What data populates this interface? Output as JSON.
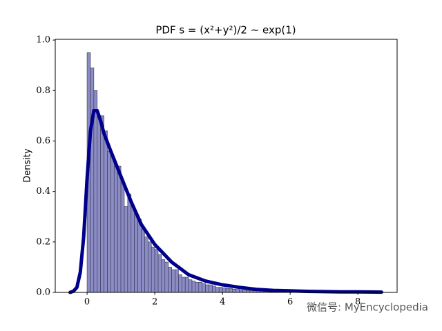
{
  "chart_data": {
    "type": "histogram",
    "title": "PDF s = (x²+y²)/2 ∼ exp(1)",
    "ylabel": "Density",
    "watermark": "微信号: MyEncyclopedia",
    "bins": [
      0,
      0.1,
      0.2,
      0.3,
      0.4,
      0.5,
      0.6,
      0.7,
      0.8,
      0.9,
      1,
      1.1,
      1.2,
      1.3,
      1.4,
      1.5,
      1.6,
      1.7,
      1.8,
      1.9,
      2,
      2.1,
      2.2,
      2.3,
      2.4,
      2.5,
      2.6,
      2.7,
      2.8,
      2.9,
      3,
      3.1,
      3.2,
      3.3,
      3.4,
      3.5,
      3.6,
      3.7,
      3.8,
      3.9,
      4,
      4.1,
      4.2,
      4.3,
      4.4,
      4.5,
      4.6,
      4.7,
      4.8,
      4.9,
      5,
      5.1,
      5.2,
      5.3,
      5.4,
      5.5,
      5.6,
      5.7,
      5.8,
      5.9,
      6,
      6.1,
      6.2,
      6.3,
      6.4,
      6.5,
      6.6,
      6.7,
      6.8,
      6.9,
      7,
      7.1,
      7.2,
      7.3,
      7.4,
      7.5,
      7.6,
      7.7,
      7.8,
      7.9,
      8,
      8.1,
      8.2,
      8.3,
      8.4,
      8.5,
      8.6,
      8.7
    ],
    "values": [
      0.95,
      0.89,
      0.8,
      0.7,
      0.7,
      0.64,
      0.56,
      0.54,
      0.5,
      0.5,
      0.44,
      0.34,
      0.39,
      0.34,
      0.31,
      0.29,
      0.25,
      0.22,
      0.2,
      0.18,
      0.17,
      0.15,
      0.13,
      0.12,
      0.1,
      0.09,
      0.09,
      0.07,
      0.06,
      0.06,
      0.05,
      0.045,
      0.04,
      0.04,
      0.035,
      0.03,
      0.03,
      0.025,
      0.02,
      0.02,
      0.018,
      0.016,
      0.015,
      0.013,
      0.012,
      0.01,
      0.009,
      0.008,
      0.007,
      0.006,
      0.006,
      0.005,
      0.004,
      0.004,
      0.003,
      0.003,
      0.003,
      0.002,
      0.002,
      0.002,
      0.002,
      0.001,
      0.001,
      0.001,
      0.001,
      0.001,
      0.001,
      0.001,
      0.001,
      0.001,
      0.001,
      0.001,
      0.001,
      0.001,
      0.001,
      0.001,
      0.001,
      0.001,
      0.001,
      0.001,
      0.001,
      0.001,
      0.001,
      0.001,
      0.001,
      0.001,
      0.001
    ],
    "color": "#8c8cc4",
    "edgecolor": "#303050",
    "kde": {
      "color": "#00008b",
      "x": [
        -0.5,
        -0.4,
        -0.3,
        -0.2,
        -0.1,
        0,
        0.1,
        0.2,
        0.3,
        0.4,
        0.5,
        0.7,
        1,
        1.3,
        1.6,
        2,
        2.5,
        3,
        3.5,
        4,
        4.5,
        5,
        5.5,
        6,
        6.5,
        7,
        7.5,
        8,
        8.7
      ],
      "y": [
        0,
        0.005,
        0.02,
        0.08,
        0.22,
        0.45,
        0.64,
        0.72,
        0.72,
        0.68,
        0.63,
        0.56,
        0.46,
        0.36,
        0.27,
        0.19,
        0.12,
        0.07,
        0.045,
        0.03,
        0.02,
        0.012,
        0.008,
        0.006,
        0.004,
        0.003,
        0.002,
        0.002,
        0.001
      ]
    },
    "xlim": [
      -0.94,
      9.16
    ],
    "ylim": [
      0,
      1.003
    ],
    "xticks": [
      0,
      2,
      4,
      6,
      8
    ],
    "yticks": [
      {
        "value": 0,
        "label": "0.0"
      },
      0.2,
      0.4,
      0.6,
      0.8,
      {
        "value": 1,
        "label": "1.0"
      }
    ]
  }
}
